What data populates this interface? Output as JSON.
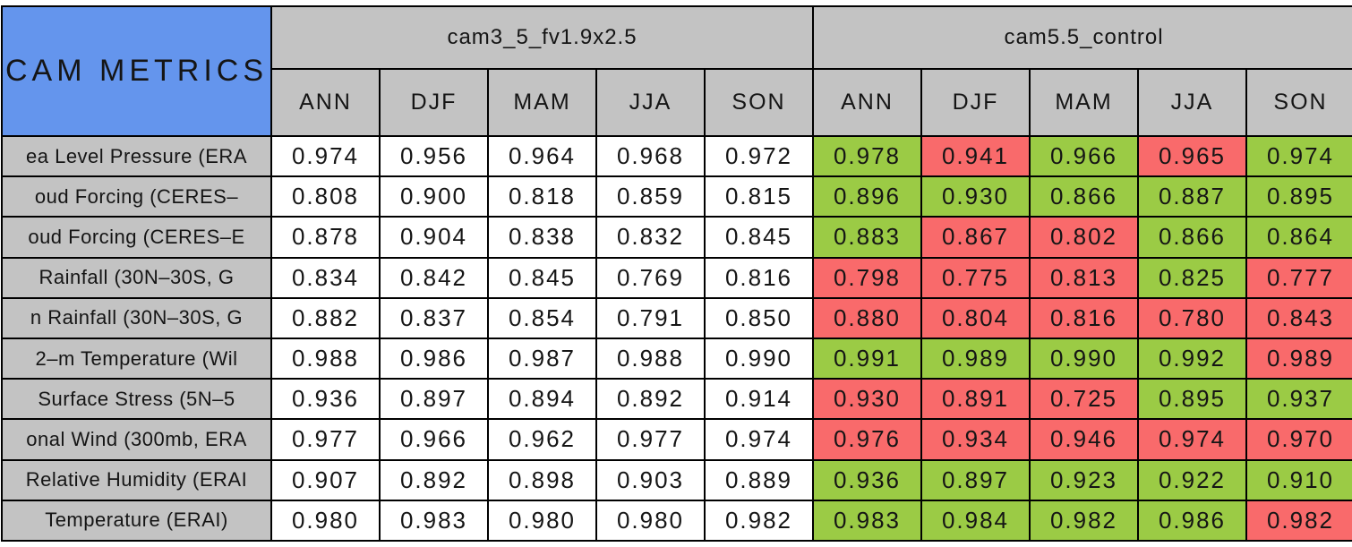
{
  "header": {
    "corner_label": "CAM METRICS",
    "groups": [
      {
        "label": "cam3_5_fv1.9x2.5"
      },
      {
        "label": "cam5.5_control"
      }
    ],
    "seasons": [
      "ANN",
      "DJF",
      "MAM",
      "JJA",
      "SON"
    ]
  },
  "colors": {
    "corner_bg": "#6495ed",
    "header_bg": "#c3c3c3",
    "plain_cell_bg": "#ffffff",
    "green_cell_bg": "#9bcb45",
    "red_cell_bg": "#f96a6b",
    "border": "#000000"
  },
  "chart_data": {
    "type": "table",
    "title": "CAM METRICS",
    "column_groups": [
      "cam3_5_fv1.9x2.5",
      "cam5.5_control"
    ],
    "columns": [
      "ANN",
      "DJF",
      "MAM",
      "JJA",
      "SON"
    ],
    "rows": [
      {
        "label": "ea Level Pressure (ERA",
        "cam3_5_values": [
          "0.974",
          "0.956",
          "0.964",
          "0.968",
          "0.972"
        ],
        "cam5_5_values": [
          "0.978",
          "0.941",
          "0.966",
          "0.965",
          "0.974"
        ],
        "cam5_5_status": [
          "green",
          "red",
          "green",
          "red",
          "green"
        ]
      },
      {
        "label": "oud Forcing (CERES–",
        "cam3_5_values": [
          "0.808",
          "0.900",
          "0.818",
          "0.859",
          "0.815"
        ],
        "cam5_5_values": [
          "0.896",
          "0.930",
          "0.866",
          "0.887",
          "0.895"
        ],
        "cam5_5_status": [
          "green",
          "green",
          "green",
          "green",
          "green"
        ]
      },
      {
        "label": "oud Forcing (CERES–E",
        "cam3_5_values": [
          "0.878",
          "0.904",
          "0.838",
          "0.832",
          "0.845"
        ],
        "cam5_5_values": [
          "0.883",
          "0.867",
          "0.802",
          "0.866",
          "0.864"
        ],
        "cam5_5_status": [
          "green",
          "red",
          "red",
          "green",
          "green"
        ]
      },
      {
        "label": "Rainfall (30N–30S, G",
        "cam3_5_values": [
          "0.834",
          "0.842",
          "0.845",
          "0.769",
          "0.816"
        ],
        "cam5_5_values": [
          "0.798",
          "0.775",
          "0.813",
          "0.825",
          "0.777"
        ],
        "cam5_5_status": [
          "red",
          "red",
          "red",
          "green",
          "red"
        ]
      },
      {
        "label": "n Rainfall (30N–30S, G",
        "cam3_5_values": [
          "0.882",
          "0.837",
          "0.854",
          "0.791",
          "0.850"
        ],
        "cam5_5_values": [
          "0.880",
          "0.804",
          "0.816",
          "0.780",
          "0.843"
        ],
        "cam5_5_status": [
          "red",
          "red",
          "red",
          "red",
          "red"
        ]
      },
      {
        "label": "2–m Temperature (Wil",
        "cam3_5_values": [
          "0.988",
          "0.986",
          "0.987",
          "0.988",
          "0.990"
        ],
        "cam5_5_values": [
          "0.991",
          "0.989",
          "0.990",
          "0.992",
          "0.989"
        ],
        "cam5_5_status": [
          "green",
          "green",
          "green",
          "green",
          "red"
        ]
      },
      {
        "label": "Surface Stress (5N–5",
        "cam3_5_values": [
          "0.936",
          "0.897",
          "0.894",
          "0.892",
          "0.914"
        ],
        "cam5_5_values": [
          "0.930",
          "0.891",
          "0.725",
          "0.895",
          "0.937"
        ],
        "cam5_5_status": [
          "red",
          "red",
          "red",
          "green",
          "green"
        ]
      },
      {
        "label": "onal Wind (300mb, ERA",
        "cam3_5_values": [
          "0.977",
          "0.966",
          "0.962",
          "0.977",
          "0.974"
        ],
        "cam5_5_values": [
          "0.976",
          "0.934",
          "0.946",
          "0.974",
          "0.970"
        ],
        "cam5_5_status": [
          "red",
          "red",
          "red",
          "red",
          "red"
        ]
      },
      {
        "label": "Relative Humidity (ERAI",
        "cam3_5_values": [
          "0.907",
          "0.892",
          "0.898",
          "0.903",
          "0.889"
        ],
        "cam5_5_values": [
          "0.936",
          "0.897",
          "0.923",
          "0.922",
          "0.910"
        ],
        "cam5_5_status": [
          "green",
          "green",
          "green",
          "green",
          "green"
        ]
      },
      {
        "label": "Temperature (ERAI)",
        "cam3_5_values": [
          "0.980",
          "0.983",
          "0.980",
          "0.980",
          "0.982"
        ],
        "cam5_5_values": [
          "0.983",
          "0.984",
          "0.982",
          "0.986",
          "0.982"
        ],
        "cam5_5_status": [
          "green",
          "green",
          "green",
          "green",
          "red"
        ]
      }
    ]
  }
}
